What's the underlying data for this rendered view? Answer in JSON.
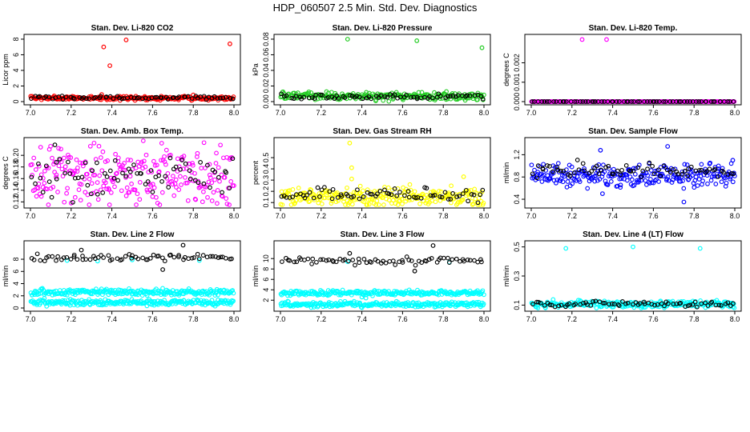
{
  "page_title": "HDP_060507  2.5 Min. Std. Dev. Diagnostics",
  "colors": {
    "black": "#000000",
    "red": "#ff0000",
    "green": "#22cc22",
    "magenta": "#ff00ff",
    "yellow": "#ffff00",
    "blue": "#0000ff",
    "cyan": "#00ffff"
  },
  "chart_data": [
    {
      "type": "scatter",
      "title": "Stan. Dev. Li-820 CO2",
      "xlabel": "",
      "ylabel": "Licor ppm",
      "xlim": [
        7.0,
        8.0
      ],
      "ylim": [
        0,
        8.2
      ],
      "xticks": [
        "7.0",
        "7.2",
        "7.4",
        "7.6",
        "7.8",
        "8.0"
      ],
      "yticks": [
        0,
        2,
        4,
        6,
        8
      ],
      "ytick_labels": [
        "0",
        "2",
        "4",
        "6",
        "8"
      ],
      "series": [
        {
          "name": "background",
          "color": "#ff0000",
          "base": 0.45,
          "spread": 0.12,
          "outliers": [
            [
              7.36,
              7.0
            ],
            [
              7.39,
              4.6
            ],
            [
              7.47,
              7.9
            ],
            [
              7.98,
              7.4
            ],
            [
              7.35,
              0.9
            ],
            [
              7.8,
              0.85
            ]
          ]
        },
        {
          "name": "overlay",
          "color": "#000000",
          "base": 0.5,
          "spread": 0.1,
          "outliers": []
        }
      ]
    },
    {
      "type": "scatter",
      "title": "Stan. Dev. Li-820 Pressure",
      "xlabel": "",
      "ylabel": "kPa",
      "xlim": [
        7.0,
        8.0
      ],
      "ylim": [
        0,
        0.082
      ],
      "xticks": [
        "7.0",
        "7.2",
        "7.4",
        "7.6",
        "7.8",
        "8.0"
      ],
      "yticks": [
        0,
        0.02,
        0.04,
        0.06,
        0.08
      ],
      "ytick_labels": [
        "0.00",
        "0.02",
        "0.04",
        "0.06",
        "0.08"
      ],
      "series": [
        {
          "name": "background",
          "color": "#22cc22",
          "base": 0.007,
          "spread": 0.0025,
          "outliers": [
            [
              7.33,
              0.08
            ],
            [
              7.67,
              0.078
            ],
            [
              7.99,
              0.069
            ]
          ]
        },
        {
          "name": "overlay",
          "color": "#000000",
          "base": 0.006,
          "spread": 0.0015,
          "outliers": []
        }
      ]
    },
    {
      "type": "scatter",
      "title": "Stan. Dev. Li-820 Temp.",
      "xlabel": "",
      "ylabel": "degrees C",
      "xlim": [
        7.0,
        8.0
      ],
      "ylim": [
        0,
        0.0033
      ],
      "xticks": [
        "7.0",
        "7.2",
        "7.4",
        "7.6",
        "7.8",
        "8.0"
      ],
      "yticks": [
        0,
        0.001,
        0.002
      ],
      "ytick_labels": [
        "0.000",
        "0.001",
        "0.002"
      ],
      "series": [
        {
          "name": "background",
          "color": "#ff00ff",
          "base": 0.0,
          "spread": 0.0,
          "outliers": [
            [
              7.25,
              0.0032
            ],
            [
              7.37,
              0.0032
            ]
          ]
        },
        {
          "name": "overlay",
          "color": "#000000",
          "base": 0.0,
          "spread": 0.0,
          "outliers": []
        }
      ]
    },
    {
      "type": "scatter",
      "title": "Stan. Dev. Amb. Box Temp.",
      "xlabel": "",
      "ylabel": "degrees C",
      "xlim": [
        7.0,
        8.0
      ],
      "ylim": [
        0.115,
        0.225
      ],
      "xticks": [
        "7.0",
        "7.2",
        "7.4",
        "7.6",
        "7.8",
        "8.0"
      ],
      "yticks": [
        0.12,
        0.14,
        0.16,
        0.18,
        0.2
      ],
      "ytick_labels": [
        "0.12",
        "0.14",
        "0.16",
        "0.18",
        "0.20"
      ],
      "series": [
        {
          "name": "background",
          "color": "#ff00ff",
          "base": 0.165,
          "spread": 0.025,
          "outliers": [
            [
              7.2,
              0.118
            ],
            [
              7.05,
              0.214
            ]
          ]
        },
        {
          "name": "overlay",
          "color": "#000000",
          "base": 0.165,
          "spread": 0.018,
          "outliers": [
            [
              7.12,
              0.218
            ]
          ]
        }
      ]
    },
    {
      "type": "scatter",
      "title": "Stan. Dev. Gas Stream RH",
      "xlabel": "",
      "ylabel": "percent",
      "xlim": [
        7.0,
        8.0
      ],
      "ylim": [
        0.08,
        0.65
      ],
      "xticks": [
        "7.0",
        "7.2",
        "7.4",
        "7.6",
        "7.8",
        "8.0"
      ],
      "yticks": [
        0.1,
        0.2,
        0.3,
        0.4,
        0.5
      ],
      "ytick_labels": [
        "0.1",
        "0.2",
        "0.3",
        "0.4",
        "0.5"
      ],
      "series": [
        {
          "name": "background",
          "color": "#ffff00",
          "base": 0.15,
          "spread": 0.04,
          "outliers": [
            [
              7.34,
              0.63
            ],
            [
              7.35,
              0.41
            ],
            [
              7.35,
              0.31
            ],
            [
              7.9,
              0.33
            ]
          ]
        },
        {
          "name": "overlay",
          "color": "#000000",
          "base": 0.17,
          "spread": 0.03,
          "outliers": []
        }
      ]
    },
    {
      "type": "scatter",
      "title": "Stan. Dev. Sample Flow",
      "xlabel": "",
      "ylabel": "ml/min",
      "xlim": [
        7.0,
        8.0
      ],
      "ylim": [
        0.3,
        1.45
      ],
      "xticks": [
        "7.0",
        "7.2",
        "7.4",
        "7.6",
        "7.8",
        "8.0"
      ],
      "yticks": [
        0.4,
        0.8,
        1.2
      ],
      "ytick_labels": [
        "0.4",
        "0.8",
        "1.2"
      ],
      "series": [
        {
          "name": "background",
          "color": "#0000ff",
          "base": 0.82,
          "spread": 0.1,
          "outliers": [
            [
              7.34,
              1.28
            ],
            [
              7.67,
              1.35
            ],
            [
              7.75,
              0.35
            ],
            [
              7.99,
              1.1
            ],
            [
              7.35,
              0.5
            ]
          ]
        },
        {
          "name": "overlay",
          "color": "#000000",
          "base": 0.92,
          "spread": 0.07,
          "outliers": []
        }
      ]
    },
    {
      "type": "scatter",
      "title": "Stan. Dev. Line 2 Flow",
      "xlabel": "",
      "ylabel": "ml/min",
      "xlim": [
        7.0,
        8.0
      ],
      "ylim": [
        0,
        10.5
      ],
      "xticks": [
        "7.0",
        "7.2",
        "7.4",
        "7.6",
        "7.8",
        "8.0"
      ],
      "yticks": [
        0,
        2,
        4,
        6,
        8
      ],
      "ytick_labels": [
        "0",
        "2",
        "4",
        "6",
        "8"
      ],
      "series": [
        {
          "name": "cyan-upper",
          "color": "#00ffff",
          "base": 2.6,
          "spread": 0.25,
          "outliers": []
        },
        {
          "name": "cyan-lower",
          "color": "#00ffff",
          "base": 0.9,
          "spread": 0.25,
          "outliers": [
            [
              7.18,
              7.8
            ],
            [
              7.33,
              7.7
            ],
            [
              7.5,
              7.9
            ],
            [
              7.83,
              7.8
            ]
          ]
        },
        {
          "name": "overlay",
          "color": "#000000",
          "base": 8.2,
          "spread": 0.3,
          "outliers": [
            [
              7.75,
              10.3
            ],
            [
              7.65,
              6.3
            ],
            [
              7.25,
              9.5
            ]
          ]
        }
      ]
    },
    {
      "type": "scatter",
      "title": "Stan. Dev. Line 3 Flow",
      "xlabel": "",
      "ylabel": "ml/min",
      "xlim": [
        7.0,
        8.0
      ],
      "ylim": [
        0.5,
        12.8
      ],
      "xticks": [
        "7.0",
        "7.2",
        "7.4",
        "7.6",
        "7.8",
        "8.0"
      ],
      "yticks": [
        2,
        4,
        6,
        8,
        10
      ],
      "ytick_labels": [
        "2",
        "4",
        "6",
        "8",
        "10"
      ],
      "series": [
        {
          "name": "cyan-upper",
          "color": "#00ffff",
          "base": 3.4,
          "spread": 0.25,
          "outliers": [
            [
              7.4,
              2.6
            ],
            [
              7.42,
              2.4
            ]
          ]
        },
        {
          "name": "cyan-lower",
          "color": "#00ffff",
          "base": 1.2,
          "spread": 0.25,
          "outliers": [
            [
              7.33,
              9.4
            ],
            [
              7.83,
              9.3
            ]
          ]
        },
        {
          "name": "overlay",
          "color": "#000000",
          "base": 9.6,
          "spread": 0.35,
          "outliers": [
            [
              7.75,
              12.5
            ],
            [
              7.66,
              7.6
            ],
            [
              7.34,
              11.0
            ]
          ]
        }
      ]
    },
    {
      "type": "scatter",
      "title": "Stan. Dev. Line 4 (LT) Flow",
      "xlabel": "",
      "ylabel": "ml/min",
      "xlim": [
        7.0,
        8.0
      ],
      "ylim": [
        0.08,
        0.52
      ],
      "xticks": [
        "7.0",
        "7.2",
        "7.4",
        "7.6",
        "7.8",
        "8.0"
      ],
      "yticks": [
        0.1,
        0.3,
        0.5
      ],
      "ytick_labels": [
        "0.1",
        "0.3",
        "0.5"
      ],
      "series": [
        {
          "name": "background",
          "color": "#00ffff",
          "base": 0.105,
          "spread": 0.012,
          "outliers": [
            [
              7.17,
              0.49
            ],
            [
              7.5,
              0.5
            ],
            [
              7.83,
              0.49
            ]
          ]
        },
        {
          "name": "overlay",
          "color": "#000000",
          "base": 0.108,
          "spread": 0.01,
          "outliers": []
        }
      ]
    }
  ]
}
